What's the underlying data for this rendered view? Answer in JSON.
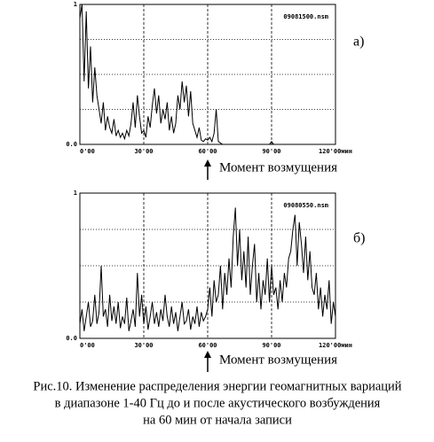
{
  "chart_data": [
    {
      "type": "line",
      "file_label": "09081500.nsm",
      "panel_label": "а)",
      "annotation": "Момент возмущения",
      "annotation_x": 60,
      "color": "#000000",
      "xlim": [
        0,
        120
      ],
      "ylim": [
        0,
        1
      ],
      "xticks": [
        {
          "value": 0,
          "label": "0'00"
        },
        {
          "value": 30,
          "label": "30'00"
        },
        {
          "value": 60,
          "label": "60'00"
        },
        {
          "value": 90,
          "label": "90'00"
        },
        {
          "value": 120,
          "label": "120'00мин"
        }
      ],
      "yticks": [
        {
          "value": 0,
          "label": "0.0"
        },
        1
      ],
      "ygrid": [
        0.25,
        0.5,
        0.75
      ],
      "x": [
        0,
        1,
        2,
        3,
        4,
        5,
        6,
        7,
        8,
        9,
        10,
        11,
        12,
        13,
        14,
        15,
        16,
        17,
        18,
        19,
        20,
        21,
        22,
        23,
        24,
        25,
        26,
        27,
        28,
        29,
        30,
        31,
        32,
        33,
        34,
        35,
        36,
        37,
        38,
        39,
        40,
        41,
        42,
        43,
        44,
        45,
        46,
        47,
        48,
        49,
        50,
        51,
        52,
        53,
        54,
        55,
        56,
        57,
        58,
        59,
        60,
        61,
        62,
        63,
        64,
        65,
        66,
        67,
        68,
        69,
        70,
        71,
        72,
        73,
        74,
        75,
        76,
        77,
        78,
        79,
        80,
        81,
        82,
        83,
        84,
        85,
        86,
        87,
        88,
        89,
        90,
        91,
        92,
        93,
        94,
        95,
        96,
        97,
        98,
        99,
        100,
        101,
        102,
        103,
        104,
        105,
        106,
        107,
        108,
        109,
        110,
        111,
        112,
        113,
        114,
        115,
        116,
        117,
        118,
        119,
        120
      ],
      "values": [
        0.9,
        1.0,
        0.45,
        0.95,
        0.4,
        0.7,
        0.3,
        0.55,
        0.35,
        0.25,
        0.15,
        0.3,
        0.1,
        0.2,
        0.12,
        0.08,
        0.18,
        0.06,
        0.1,
        0.05,
        0.08,
        0.04,
        0.1,
        0.06,
        0.15,
        0.3,
        0.12,
        0.35,
        0.2,
        0.08,
        0.1,
        0.05,
        0.2,
        0.12,
        0.28,
        0.4,
        0.22,
        0.35,
        0.15,
        0.25,
        0.18,
        0.3,
        0.1,
        0.2,
        0.08,
        0.15,
        0.35,
        0.25,
        0.45,
        0.3,
        0.42,
        0.2,
        0.38,
        0.15,
        0.1,
        0.05,
        0.12,
        0.03,
        0.02,
        0.04,
        0.03,
        0.05,
        0.02,
        0.08,
        0.25,
        0.02,
        0.01,
        0,
        0,
        0,
        0,
        0,
        0,
        0,
        0,
        0,
        0,
        0,
        0,
        0,
        0,
        0,
        0,
        0,
        0,
        0,
        0,
        0,
        0,
        0,
        0.02,
        0,
        0,
        0,
        0,
        0,
        0,
        0,
        0,
        0,
        0,
        0,
        0,
        0,
        0,
        0,
        0,
        0,
        0,
        0,
        0,
        0,
        0,
        0,
        0,
        0,
        0,
        0,
        0,
        0,
        0
      ]
    },
    {
      "type": "line",
      "file_label": "09080550.nsm",
      "panel_label": "б)",
      "annotation": "Момент возмущения",
      "annotation_x": 60,
      "color": "#000000",
      "xlim": [
        0,
        120
      ],
      "ylim": [
        0,
        1
      ],
      "xticks": [
        {
          "value": 0,
          "label": "0'00"
        },
        {
          "value": 30,
          "label": "30'00"
        },
        {
          "value": 60,
          "label": "60'00"
        },
        {
          "value": 90,
          "label": "90'00"
        },
        {
          "value": 120,
          "label": "120'00мин"
        }
      ],
      "yticks": [
        {
          "value": 0,
          "label": "0.0"
        },
        1
      ],
      "ygrid": [
        0.25,
        0.5,
        0.75
      ],
      "x": [
        0,
        1,
        2,
        3,
        4,
        5,
        6,
        7,
        8,
        9,
        10,
        11,
        12,
        13,
        14,
        15,
        16,
        17,
        18,
        19,
        20,
        21,
        22,
        23,
        24,
        25,
        26,
        27,
        28,
        29,
        30,
        31,
        32,
        33,
        34,
        35,
        36,
        37,
        38,
        39,
        40,
        41,
        42,
        43,
        44,
        45,
        46,
        47,
        48,
        49,
        50,
        51,
        52,
        53,
        54,
        55,
        56,
        57,
        58,
        59,
        60,
        61,
        62,
        63,
        64,
        65,
        66,
        67,
        68,
        69,
        70,
        71,
        72,
        73,
        74,
        75,
        76,
        77,
        78,
        79,
        80,
        81,
        82,
        83,
        84,
        85,
        86,
        87,
        88,
        89,
        90,
        91,
        92,
        93,
        94,
        95,
        96,
        97,
        98,
        99,
        100,
        101,
        102,
        103,
        104,
        105,
        106,
        107,
        108,
        109,
        110,
        111,
        112,
        113,
        114,
        115,
        116,
        117,
        118,
        119,
        120
      ],
      "values": [
        0.1,
        0.2,
        0.05,
        0.15,
        0.25,
        0.08,
        0.12,
        0.3,
        0.1,
        0.18,
        0.5,
        0.15,
        0.2,
        0.08,
        0.3,
        0.12,
        0.22,
        0.1,
        0.25,
        0.07,
        0.15,
        0.1,
        0.28,
        0.05,
        0.12,
        0.2,
        0.08,
        0.45,
        0.15,
        0.3,
        0.1,
        0.22,
        0.06,
        0.15,
        0.25,
        0.1,
        0.18,
        0.08,
        0.2,
        0.12,
        0.3,
        0.15,
        0.08,
        0.22,
        0.1,
        0.18,
        0.05,
        0.15,
        0.25,
        0.1,
        0.12,
        0.2,
        0.06,
        0.15,
        0.1,
        0.22,
        0.08,
        0.18,
        0.12,
        0.15,
        0.2,
        0.35,
        0.15,
        0.4,
        0.25,
        0.3,
        0.5,
        0.2,
        0.45,
        0.3,
        0.55,
        0.35,
        0.7,
        0.9,
        0.5,
        0.75,
        0.4,
        0.6,
        0.35,
        0.7,
        0.3,
        0.5,
        0.65,
        0.25,
        0.45,
        0.2,
        0.4,
        0.3,
        0.55,
        0.25,
        0.5,
        0.3,
        0.35,
        0.2,
        0.4,
        0.25,
        0.45,
        0.35,
        0.55,
        0.6,
        0.75,
        0.85,
        0.5,
        0.8,
        0.65,
        0.45,
        0.7,
        0.4,
        0.6,
        0.35,
        0.3,
        0.45,
        0.2,
        0.35,
        0.15,
        0.3,
        0.2,
        0.4,
        0.1,
        0.25,
        0.15
      ]
    }
  ],
  "caption": [
    "Рис.10. Изменение распределения энергии геомагнитных вариаций",
    "в диапазоне 1-40 Гц до и после акустического возбуждения",
    "на 60 мин от начала записи"
  ]
}
